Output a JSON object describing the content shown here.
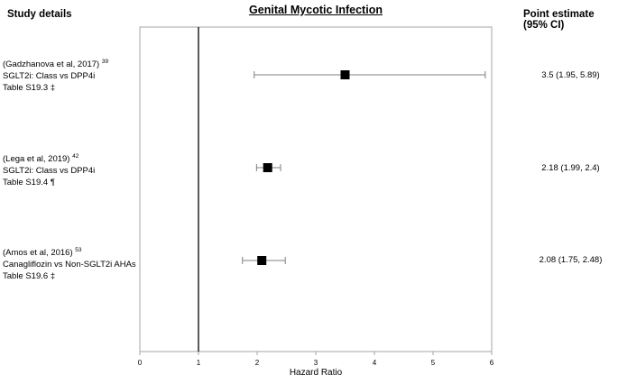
{
  "header": {
    "left": "Study details",
    "right": "Point estimate (95% CI)"
  },
  "chart_data": {
    "type": "scatter",
    "title": "Genital Mycotic Infection",
    "xlabel": "Hazard Ratio",
    "ylabel": "",
    "xlim": [
      0,
      6
    ],
    "xticks": [
      "0",
      "1",
      "2",
      "3",
      "4",
      "5",
      "6"
    ],
    "reference_line": 1,
    "grid": false,
    "studies": [
      {
        "citation": "(Gadzhanova et al, 2017)",
        "ref": "39",
        "comparison": "SGLT2i: Class vs DPP4i",
        "table": "Table S19.3  ‡",
        "estimate": 3.5,
        "lower": 1.95,
        "upper": 5.89,
        "label": "3.5 (1.95, 5.89)"
      },
      {
        "citation": "(Lega et al, 2019)",
        "ref": "42",
        "comparison": "SGLT2i: Class vs DPP4i",
        "table": "Table S19.4  ¶",
        "estimate": 2.18,
        "lower": 1.99,
        "upper": 2.4,
        "label": "2.18 (1.99, 2.4)"
      },
      {
        "citation": "(Amos et al, 2016)",
        "ref": "53",
        "comparison": "Canagliflozin vs Non-SGLT2i AHAs",
        "table": "Table S19.6  ‡",
        "estimate": 2.08,
        "lower": 1.75,
        "upper": 2.48,
        "label": "2.08 (1.75, 2.48)"
      }
    ]
  }
}
